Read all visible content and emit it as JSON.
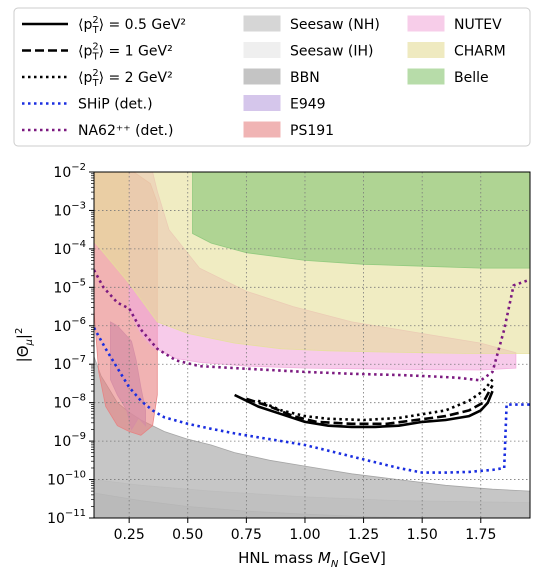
{
  "chart_data": {
    "type": "line",
    "xlabel": "HNL mass M_N [GeV]",
    "ylabel": "|Θ_μ|²",
    "xlim": [
      0.1,
      1.96
    ],
    "ylim_exp": [
      -11,
      -2
    ],
    "yscale": "log",
    "grid": true,
    "legend_placement": "top",
    "x_ticks": [
      {
        "v": 0.25,
        "label": "0.25"
      },
      {
        "v": 0.5,
        "label": "0.50"
      },
      {
        "v": 0.75,
        "label": "0.75"
      },
      {
        "v": 1.0,
        "label": "1.00"
      },
      {
        "v": 1.25,
        "label": "1.25"
      },
      {
        "v": 1.5,
        "label": "1.50"
      },
      {
        "v": 1.75,
        "label": "1.75"
      }
    ],
    "y_ticks": [
      {
        "e": -11,
        "base": "10",
        "exp": "−11"
      },
      {
        "e": -10,
        "base": "10",
        "exp": "−10"
      },
      {
        "e": -9,
        "base": "10",
        "exp": "−9"
      },
      {
        "e": -8,
        "base": "10",
        "exp": "−8"
      },
      {
        "e": -7,
        "base": "10",
        "exp": "−7"
      },
      {
        "e": -6,
        "base": "10",
        "exp": "−6"
      },
      {
        "e": -5,
        "base": "10",
        "exp": "−5"
      },
      {
        "e": -4,
        "base": "10",
        "exp": "−4"
      },
      {
        "e": -3,
        "base": "10",
        "exp": "−3"
      },
      {
        "e": -2,
        "base": "10",
        "exp": "−2"
      }
    ],
    "regions": [
      {
        "name": "Seesaw (NH)",
        "fill": "#bdbdbd",
        "opacity": 0.55,
        "points": [
          [
            0.1,
            -10.35
          ],
          [
            0.3,
            -10.55
          ],
          [
            0.5,
            -10.7
          ],
          [
            0.75,
            -10.82
          ],
          [
            1.0,
            -10.9
          ],
          [
            1.25,
            -10.96
          ],
          [
            1.5,
            -11.0
          ],
          [
            1.96,
            -11.0
          ],
          [
            1.96,
            -11.0
          ],
          [
            0.1,
            -11.0
          ]
        ]
      },
      {
        "name": "Seesaw (IH)",
        "fill": "#e6e6e6",
        "opacity": 0.6,
        "points": [
          [
            0.1,
            -10.0
          ],
          [
            0.3,
            -10.15
          ],
          [
            0.6,
            -10.3
          ],
          [
            1.0,
            -10.45
          ],
          [
            1.4,
            -10.55
          ],
          [
            1.96,
            -10.6
          ],
          [
            1.96,
            -11.0
          ],
          [
            0.1,
            -11.0
          ]
        ]
      },
      {
        "name": "BBN",
        "fill": "#a0a0a0",
        "opacity": 0.6,
        "points": [
          [
            0.1,
            -6.8
          ],
          [
            0.13,
            -7.3
          ],
          [
            0.16,
            -7.6
          ],
          [
            0.2,
            -8.0
          ],
          [
            0.25,
            -8.25
          ],
          [
            0.3,
            -8.45
          ],
          [
            0.4,
            -8.75
          ],
          [
            0.5,
            -8.95
          ],
          [
            0.6,
            -9.1
          ],
          [
            0.7,
            -9.3
          ],
          [
            0.85,
            -9.5
          ],
          [
            1.0,
            -9.65
          ],
          [
            1.2,
            -9.85
          ],
          [
            1.4,
            -10.0
          ],
          [
            1.6,
            -10.15
          ],
          [
            1.8,
            -10.25
          ],
          [
            1.96,
            -10.3
          ],
          [
            1.96,
            -11.0
          ],
          [
            0.1,
            -11.0
          ]
        ]
      },
      {
        "name": "E949",
        "fill": "#b9a0dc",
        "opacity": 0.7,
        "points": [
          [
            0.17,
            -5.9
          ],
          [
            0.2,
            -6.0
          ],
          [
            0.23,
            -6.2
          ],
          [
            0.26,
            -6.4
          ],
          [
            0.28,
            -6.9
          ],
          [
            0.3,
            -7.6
          ],
          [
            0.32,
            -8.2
          ],
          [
            0.32,
            -8.6
          ],
          [
            0.29,
            -8.4
          ],
          [
            0.26,
            -8.7
          ],
          [
            0.24,
            -8.2
          ],
          [
            0.2,
            -7.8
          ],
          [
            0.17,
            -7.4
          ]
        ]
      },
      {
        "name": "PS191",
        "fill": "#e88080",
        "opacity": 0.6,
        "points": [
          [
            0.1,
            -5.6
          ],
          [
            0.12,
            -7.2
          ],
          [
            0.15,
            -8.1
          ],
          [
            0.2,
            -8.6
          ],
          [
            0.25,
            -8.75
          ],
          [
            0.3,
            -8.85
          ],
          [
            0.35,
            -8.6
          ],
          [
            0.37,
            -7.8
          ],
          [
            0.37,
            -2.8
          ],
          [
            0.34,
            -2.3
          ],
          [
            0.27,
            -2.0
          ],
          [
            0.1,
            -2.0
          ]
        ]
      },
      {
        "name": "NUTEV",
        "fill": "#f2a9dc",
        "opacity": 0.6,
        "points": [
          [
            0.25,
            -2.0
          ],
          [
            0.25,
            -5.6
          ],
          [
            0.3,
            -6.2
          ],
          [
            0.35,
            -6.55
          ],
          [
            0.45,
            -6.85
          ],
          [
            0.55,
            -6.95
          ],
          [
            0.75,
            -7.05
          ],
          [
            1.0,
            -7.1
          ],
          [
            1.25,
            -7.12
          ],
          [
            1.5,
            -7.14
          ],
          [
            1.75,
            -7.15
          ],
          [
            1.9,
            -7.1
          ],
          [
            1.9,
            -6.7
          ],
          [
            1.75,
            -6.45
          ],
          [
            1.5,
            -6.2
          ],
          [
            1.2,
            -5.9
          ],
          [
            0.95,
            -5.5
          ],
          [
            0.75,
            -5.1
          ],
          [
            0.55,
            -4.5
          ],
          [
            0.42,
            -3.5
          ],
          [
            0.37,
            -2.5
          ],
          [
            0.35,
            -2.0
          ]
        ]
      },
      {
        "name": "CHARM",
        "fill": "#e6e09a",
        "opacity": 0.6,
        "points": [
          [
            0.1,
            -2.0
          ],
          [
            0.1,
            -3.8
          ],
          [
            0.25,
            -4.9
          ],
          [
            0.37,
            -5.9
          ],
          [
            0.5,
            -6.2
          ],
          [
            0.7,
            -6.45
          ],
          [
            0.9,
            -6.6
          ],
          [
            1.1,
            -6.65
          ],
          [
            1.3,
            -6.68
          ],
          [
            1.5,
            -6.7
          ],
          [
            1.7,
            -6.72
          ],
          [
            1.96,
            -6.72
          ],
          [
            1.96,
            -2.0
          ]
        ]
      },
      {
        "name": "Belle",
        "fill": "#8cc87a",
        "opacity": 0.65,
        "points": [
          [
            0.52,
            -2.0
          ],
          [
            0.52,
            -3.6
          ],
          [
            0.6,
            -3.85
          ],
          [
            0.75,
            -4.1
          ],
          [
            1.0,
            -4.3
          ],
          [
            1.25,
            -4.4
          ],
          [
            1.5,
            -4.45
          ],
          [
            1.75,
            -4.5
          ],
          [
            1.96,
            -4.5
          ],
          [
            1.96,
            -2.0
          ]
        ]
      }
    ],
    "series": [
      {
        "name": "⟨p²_T⟩ = 0.5 GeV²",
        "color": "#000000",
        "dash": "",
        "width": 2.6,
        "points": [
          [
            0.7,
            -7.8
          ],
          [
            0.75,
            -7.95
          ],
          [
            0.8,
            -8.1
          ],
          [
            0.9,
            -8.3
          ],
          [
            1.0,
            -8.5
          ],
          [
            1.1,
            -8.6
          ],
          [
            1.2,
            -8.63
          ],
          [
            1.3,
            -8.63
          ],
          [
            1.4,
            -8.6
          ],
          [
            1.5,
            -8.5
          ],
          [
            1.6,
            -8.45
          ],
          [
            1.7,
            -8.35
          ],
          [
            1.75,
            -8.2
          ],
          [
            1.78,
            -8.0
          ],
          [
            1.8,
            -7.7
          ]
        ]
      },
      {
        "name": "⟨p²_T⟩ = 1 GeV²",
        "color": "#000000",
        "dash": "9 4",
        "width": 2.6,
        "points": [
          [
            0.75,
            -7.9
          ],
          [
            0.85,
            -8.1
          ],
          [
            0.95,
            -8.35
          ],
          [
            1.05,
            -8.5
          ],
          [
            1.2,
            -8.55
          ],
          [
            1.35,
            -8.55
          ],
          [
            1.5,
            -8.43
          ],
          [
            1.6,
            -8.35
          ],
          [
            1.7,
            -8.2
          ],
          [
            1.76,
            -8.0
          ],
          [
            1.8,
            -7.55
          ]
        ]
      },
      {
        "name": "⟨p²_T⟩ = 2 GeV²",
        "color": "#000000",
        "dash": "2.5 3.5",
        "width": 2.6,
        "points": [
          [
            0.8,
            -7.95
          ],
          [
            0.9,
            -8.2
          ],
          [
            1.0,
            -8.35
          ],
          [
            1.1,
            -8.42
          ],
          [
            1.25,
            -8.45
          ],
          [
            1.4,
            -8.4
          ],
          [
            1.5,
            -8.3
          ],
          [
            1.6,
            -8.2
          ],
          [
            1.7,
            -7.95
          ],
          [
            1.76,
            -7.7
          ],
          [
            1.8,
            -7.4
          ]
        ]
      },
      {
        "name": "SHiP (det.)",
        "color": "#1a2ee0",
        "dash": "2.5 3.5",
        "width": 2.6,
        "points": [
          [
            0.1,
            -6.05
          ],
          [
            0.15,
            -6.6
          ],
          [
            0.2,
            -7.1
          ],
          [
            0.25,
            -7.6
          ],
          [
            0.3,
            -7.95
          ],
          [
            0.35,
            -8.2
          ],
          [
            0.4,
            -8.38
          ],
          [
            0.5,
            -8.55
          ],
          [
            0.6,
            -8.68
          ],
          [
            0.7,
            -8.8
          ],
          [
            0.8,
            -8.9
          ],
          [
            0.9,
            -9.0
          ],
          [
            1.0,
            -9.1
          ],
          [
            1.1,
            -9.25
          ],
          [
            1.2,
            -9.4
          ],
          [
            1.3,
            -9.55
          ],
          [
            1.4,
            -9.7
          ],
          [
            1.5,
            -9.82
          ],
          [
            1.6,
            -9.82
          ],
          [
            1.7,
            -9.8
          ],
          [
            1.8,
            -9.75
          ],
          [
            1.85,
            -9.7
          ],
          [
            1.86,
            -8.05
          ],
          [
            1.96,
            -8.05
          ]
        ]
      },
      {
        "name": "NA62⁺⁺ (det.)",
        "color": "#7c1a80",
        "dash": "2.5 3.5",
        "width": 2.6,
        "points": [
          [
            0.1,
            -4.55
          ],
          [
            0.14,
            -5.0
          ],
          [
            0.2,
            -5.4
          ],
          [
            0.25,
            -5.55
          ],
          [
            0.3,
            -6.1
          ],
          [
            0.37,
            -6.6
          ],
          [
            0.45,
            -6.9
          ],
          [
            0.55,
            -7.05
          ],
          [
            0.7,
            -7.1
          ],
          [
            0.85,
            -7.15
          ],
          [
            1.0,
            -7.2
          ],
          [
            1.2,
            -7.25
          ],
          [
            1.4,
            -7.28
          ],
          [
            1.55,
            -7.32
          ],
          [
            1.65,
            -7.35
          ],
          [
            1.75,
            -7.42
          ],
          [
            1.8,
            -7.2
          ],
          [
            1.85,
            -6.1
          ],
          [
            1.89,
            -4.95
          ],
          [
            1.96,
            -4.8
          ]
        ]
      }
    ],
    "legend": {
      "lines": [
        {
          "text": "⟨p²_T⟩ = 0.5 GeV²",
          "color": "#000000",
          "dash": ""
        },
        {
          "text": "⟨p²_T⟩ = 1 GeV²",
          "color": "#000000",
          "dash": "9 4"
        },
        {
          "text": "⟨p²_T⟩ = 2 GeV²",
          "color": "#000000",
          "dash": "2.5 3.5"
        },
        {
          "text": "SHiP (det.)",
          "color": "#1a2ee0",
          "dash": "2.5 3.5"
        },
        {
          "text": "NA62⁺⁺ (det.)",
          "color": "#7c1a80",
          "dash": "2.5 3.5"
        }
      ],
      "patches": [
        {
          "text": "Seesaw (NH)",
          "color": "#d6d6d6"
        },
        {
          "text": "Seesaw (IH)",
          "color": "#efefef"
        },
        {
          "text": "BBN",
          "color": "#c4c4c4"
        },
        {
          "text": "E949",
          "color": "#d5c6eb"
        },
        {
          "text": "PS191",
          "color": "#f0b4b4"
        },
        {
          "text": "NUTEV",
          "color": "#f7cde9"
        },
        {
          "text": "CHARM",
          "color": "#efeac0"
        },
        {
          "text": "Belle",
          "color": "#b7dca9"
        }
      ]
    }
  }
}
